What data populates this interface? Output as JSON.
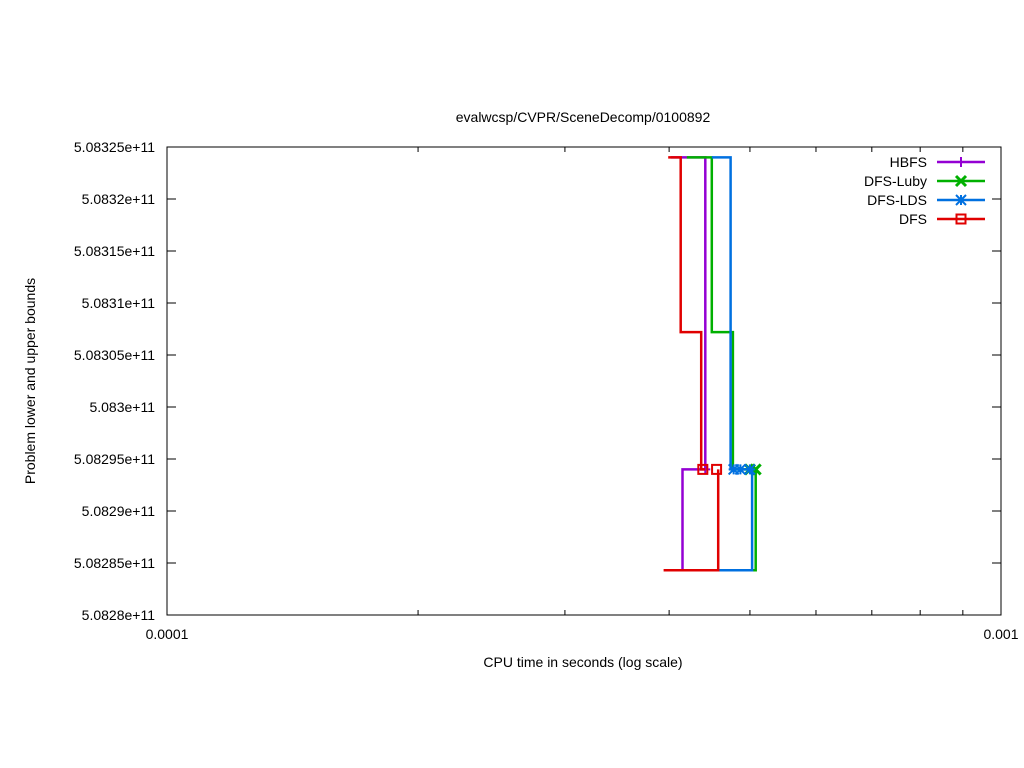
{
  "chart_data": {
    "type": "line",
    "title": "evalwcsp/CVPR/SceneDecomp/0100892",
    "xlabel": "CPU time in seconds (log scale)",
    "ylabel": "Problem lower and upper bounds",
    "xscale": "log",
    "xlim": [
      0.0001,
      0.001
    ],
    "ylim": [
      508280000000,
      508325000000
    ],
    "x_ticks": [
      0.0001,
      0.001
    ],
    "x_tick_labels": [
      "0.0001",
      "0.001"
    ],
    "y_ticks": [
      508280000000,
      508285000000,
      508290000000,
      508295000000,
      508300000000,
      508305000000,
      508310000000,
      508315000000,
      508320000000,
      508325000000
    ],
    "y_tick_labels": [
      "5.0828e+11",
      "5.08285e+11",
      "5.0829e+11",
      "5.08295e+11",
      "5.083e+11",
      "5.08305e+11",
      "5.0831e+11",
      "5.08315e+11",
      "5.0832e+11",
      "5.08325e+11"
    ],
    "grid": false,
    "legend_position": "top-right",
    "series": [
      {
        "name": "HBFS",
        "color": "#9400d3",
        "marker": "plus",
        "upper": {
          "x": [
            0.000402,
            0.000442,
            0.000442
          ],
          "y": [
            508324000000,
            508324000000,
            508294000000
          ]
        },
        "lower": {
          "x": [
            0.000415,
            0.000415,
            0.000442
          ],
          "y": [
            508284300000,
            508294000000,
            508294000000
          ]
        },
        "markers_x": [
          0.000442
        ],
        "marker_y": 508294000000
      },
      {
        "name": "DFS-Luby",
        "color": "#00b000",
        "marker": "cross",
        "upper": {
          "x": [
            0.00042,
            0.00045,
            0.00045,
            0.000477,
            0.000477,
            0.000508
          ],
          "y": [
            508324000000,
            508324000000,
            508307200000,
            508307200000,
            508294000000,
            508294000000
          ]
        },
        "lower": {
          "x": [
            0.000458,
            0.000508,
            0.000508
          ],
          "y": [
            508284300000,
            508284300000,
            508294000000
          ]
        },
        "markers_x": [
          0.0005,
          0.000508
        ],
        "marker_y": 508294000000
      },
      {
        "name": "DFS-LDS",
        "color": "#0070e0",
        "marker": "star",
        "upper": {
          "x": [
            0.00045,
            0.000474,
            0.000474,
            0.0005
          ],
          "y": [
            508324000000,
            508324000000,
            508294000000,
            508294000000
          ]
        },
        "lower": {
          "x": [
            0.000458,
            0.000503,
            0.000503
          ],
          "y": [
            508284300000,
            508284300000,
            508294000000
          ]
        },
        "markers_x": [
          0.000478,
          0.000487,
          0.0005
        ],
        "marker_y": 508294000000
      },
      {
        "name": "DFS",
        "color": "#e00000",
        "marker": "square",
        "upper": {
          "x": [
            0.000399,
            0.000413,
            0.000413,
            0.000437,
            0.000437,
            0.000442
          ],
          "y": [
            508324000000,
            508324000000,
            508307200000,
            508307200000,
            508294000000,
            508294000000
          ]
        },
        "lower": {
          "x": [
            0.000394,
            0.000458,
            0.000458
          ],
          "y": [
            508284300000,
            508284300000,
            508294000000
          ]
        },
        "markers_x": [
          0.000439,
          0.000456
        ],
        "marker_y": 508294000000
      }
    ]
  }
}
